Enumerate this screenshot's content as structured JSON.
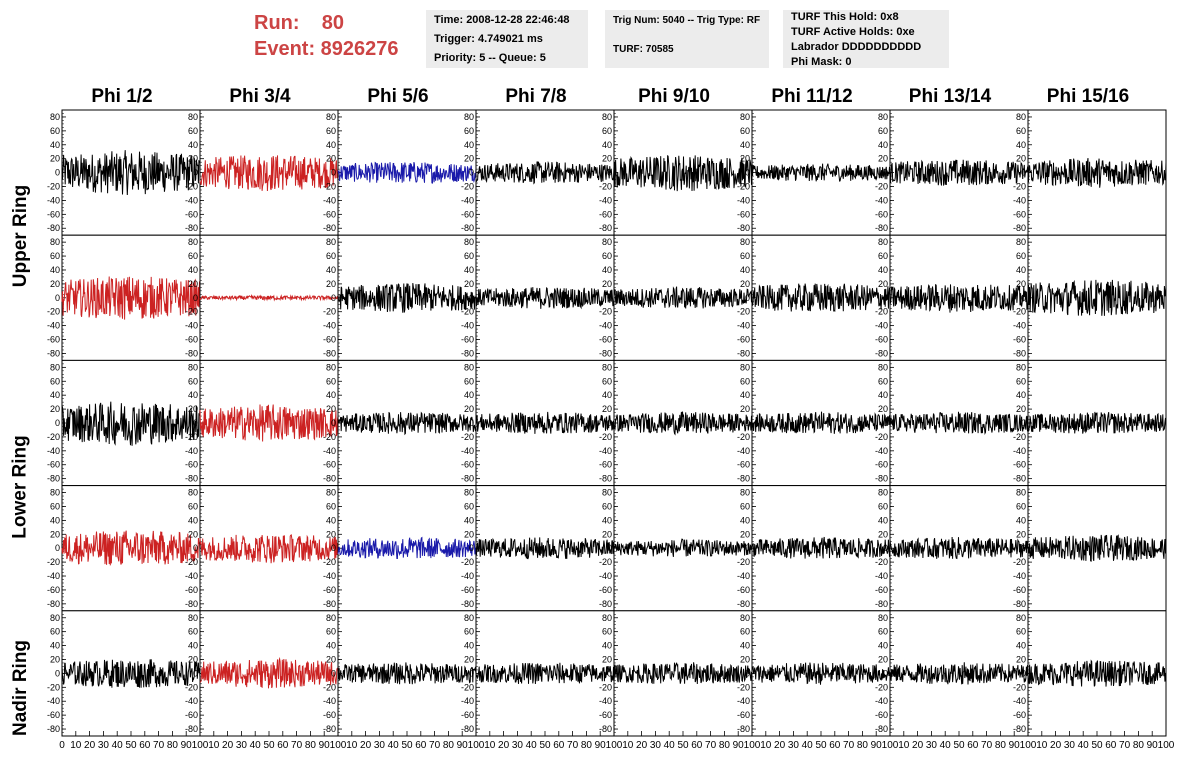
{
  "run_label": "Run:    80",
  "event_label": "Event: 8926276",
  "info": {
    "time": "Time: 2008-12-28 22:46:48",
    "trigger": "Trigger: 4.749021 ms",
    "priority": "Priority: 5 -- Queue: 5",
    "trig_num": "Trig Num: 5040 -- Trig Type: RF",
    "turf_num": "TURF: 70585",
    "turf_hold": "TURF This Hold: 0x8",
    "turf_active": "TURF Active Holds: 0xe",
    "labrador": "Labrador DDDDDDDDDD",
    "phi_mask": "Phi Mask: 0"
  },
  "columns": [
    "Phi 1/2",
    "Phi 3/4",
    "Phi 5/6",
    "Phi 7/8",
    "Phi 9/10",
    "Phi 11/12",
    "Phi 13/14",
    "Phi 15/16"
  ],
  "rows": [
    "Upper Ring",
    "Upper Ring",
    "Lower Ring",
    "Lower Ring",
    "Nadir Ring"
  ],
  "row_labels": [
    "Upper Ring",
    "Lower Ring",
    "Nadir Ring"
  ],
  "colors": {
    "black": "#000000",
    "red": "#cc2222",
    "blue": "#1a1aaa",
    "run_text": "#cc4444"
  },
  "chart_data": {
    "type": "line",
    "xlim": [
      0,
      100
    ],
    "ylim": [
      -90,
      90
    ],
    "yticks": [
      -80,
      -60,
      -40,
      -20,
      0,
      20,
      40,
      60,
      80
    ],
    "xticks": [
      0,
      10,
      20,
      30,
      40,
      50,
      60,
      70,
      80,
      90,
      100
    ],
    "panel_colors": [
      [
        "black",
        "red",
        "blue",
        "black",
        "black",
        "black",
        "black",
        "black"
      ],
      [
        "red",
        "red",
        "black",
        "black",
        "black",
        "black",
        "black",
        "black"
      ],
      [
        "black",
        "red",
        "black",
        "black",
        "black",
        "black",
        "black",
        "black"
      ],
      [
        "red",
        "red",
        "blue",
        "black",
        "black",
        "black",
        "black",
        "black"
      ],
      [
        "black",
        "red",
        "black",
        "black",
        "black",
        "black",
        "black",
        "black"
      ]
    ],
    "panel_amplitude": [
      [
        30,
        25,
        15,
        15,
        25,
        12,
        18,
        20
      ],
      [
        30,
        3,
        20,
        15,
        15,
        20,
        20,
        25
      ],
      [
        30,
        25,
        15,
        15,
        15,
        15,
        15,
        15
      ],
      [
        25,
        20,
        15,
        15,
        12,
        15,
        15,
        18
      ],
      [
        20,
        20,
        15,
        15,
        15,
        15,
        15,
        18
      ]
    ]
  }
}
